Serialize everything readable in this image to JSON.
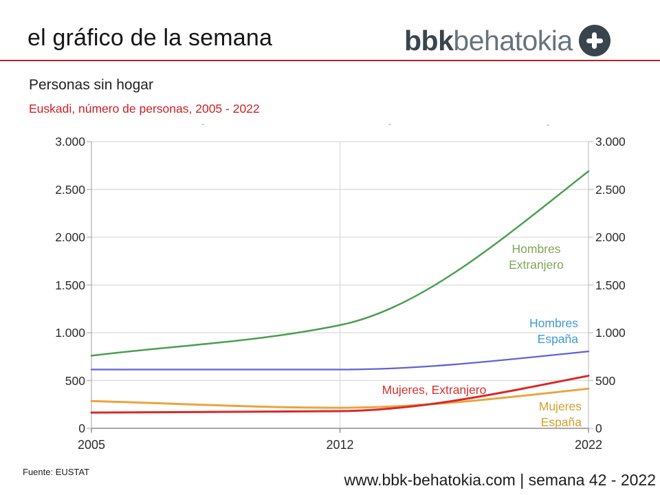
{
  "header": {
    "title": "el gráfico de la semana",
    "logo": {
      "bold": "bbk",
      "light": "behatokia",
      "plus_icon": "plus"
    }
  },
  "chart_header": {
    "title": "Personas sin hogar",
    "subtitle": "Euskadi, número de personas, 2005 - 2022"
  },
  "colors": {
    "divider_red": "#ae2328",
    "subtitle_red": "#cd2026",
    "logo_dark": "#3a444d",
    "logo_gray": "#67737c"
  },
  "chart_data": {
    "type": "line",
    "title": "Personas sin hogar",
    "subtitle": "Euskadi, número de personas, 2005 - 2022",
    "categories": [
      "2005",
      "2012",
      "2022"
    ],
    "series": [
      {
        "name": "Hombres Extranjero",
        "label_lines": [
          "Hombres",
          "Extranjero"
        ],
        "color": "#4b9e51",
        "label_color": "#7fa757",
        "values": [
          760,
          1080,
          2690
        ]
      },
      {
        "name": "Hombres España",
        "label_lines": [
          "Hombres",
          "España"
        ],
        "color": "#6161d8",
        "label_color": "#3e9ad5",
        "values": [
          615,
          615,
          805
        ]
      },
      {
        "name": "Mujeres, Extranjero",
        "label_lines": [
          "Mujeres, Extranjero"
        ],
        "color": "#d92727",
        "label_color": "#dc2f2f",
        "values": [
          165,
          180,
          550
        ]
      },
      {
        "name": "Mujeres España",
        "label_lines": [
          "Mujeres",
          "España"
        ],
        "color": "#eaa43c",
        "label_color": "#d2a02e",
        "values": [
          285,
          215,
          415
        ]
      }
    ],
    "ylim": [
      0,
      3000
    ],
    "ytick_values": [
      0,
      500,
      1000,
      1500,
      2000,
      2500,
      3000
    ],
    "ytick_labels": [
      "0",
      "500",
      "1.000",
      "1.500",
      "2.000",
      "2.500",
      "3.000"
    ],
    "y_axis_sides": "both",
    "grid": true,
    "legend_position": "inline-labels",
    "xlabel": "",
    "ylabel": ""
  },
  "footer": {
    "source": "Fuente: EUSTAT",
    "website": "www.bbk-behatokia.com | semana 42 - 2022"
  }
}
